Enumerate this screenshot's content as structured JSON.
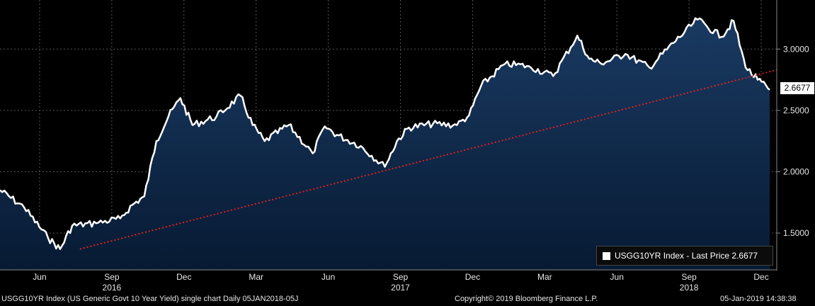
{
  "chart_data": {
    "type": "area",
    "title": "",
    "xlabel": "",
    "ylabel": "",
    "ylim": [
      1.2,
      3.4
    ],
    "y_ticks": [
      "1.5000",
      "2.0000",
      "2.5000",
      "3.0000"
    ],
    "y_tick_values": [
      1.5,
      2.0,
      2.5,
      3.0
    ],
    "x_month_ticks": [
      "Jun",
      "Sep",
      "Dec",
      "Mar",
      "Jun",
      "Sep",
      "Dec",
      "Mar",
      "Jun",
      "Sep",
      "Dec"
    ],
    "x_year_labels": [
      "2016",
      "2017",
      "2018"
    ],
    "series": [
      {
        "name": "USGG10YR Index - Last Price 2.6677",
        "x": [
          "2016-05",
          "2016-06",
          "2016-07",
          "2016-07",
          "2016-08",
          "2016-09",
          "2016-10",
          "2016-10",
          "2016-11",
          "2016-11",
          "2016-12",
          "2016-12",
          "2017-01",
          "2017-02",
          "2017-03",
          "2017-03",
          "2017-04",
          "2017-05",
          "2017-06",
          "2017-06",
          "2017-07",
          "2017-08",
          "2017-09",
          "2017-09",
          "2017-10",
          "2017-11",
          "2017-12",
          "2017-12",
          "2018-01",
          "2018-02",
          "2018-03",
          "2018-04",
          "2018-05",
          "2018-05",
          "2018-06",
          "2018-07",
          "2018-08",
          "2018-09",
          "2018-10",
          "2018-11",
          "2018-11",
          "2018-12",
          "2018-12",
          "2019-01"
        ],
        "values": [
          1.85,
          1.71,
          1.46,
          1.37,
          1.56,
          1.58,
          1.62,
          1.73,
          1.8,
          2.25,
          2.45,
          2.6,
          2.38,
          2.45,
          2.62,
          2.38,
          2.25,
          2.38,
          2.15,
          2.37,
          2.3,
          2.21,
          2.04,
          2.25,
          2.36,
          2.39,
          2.38,
          2.46,
          2.7,
          2.88,
          2.86,
          2.78,
          3.11,
          2.92,
          2.88,
          2.96,
          2.85,
          3.05,
          3.24,
          3.1,
          3.23,
          2.85,
          2.75,
          2.6677
        ]
      }
    ],
    "trendline": {
      "x": [
        "2016-07",
        "2019-01"
      ],
      "values": [
        1.37,
        2.83
      ],
      "color": "#e02020",
      "style": "dotted"
    },
    "last_price": "2.6677",
    "colors": {
      "line": "#ffffff",
      "area_top": "#1a3a62",
      "area_bottom": "#071a33",
      "background": "#000000",
      "grid": "#444444"
    },
    "grid": true,
    "legend_placement": "bottom-right"
  },
  "legend": {
    "label": "USGG10YR Index - Last Price 2.6677"
  },
  "footer": {
    "left": "USGG10YR Index (US Generic Govt 10 Year Yield) single chart  Daily 05JAN2018-05J",
    "center": "Copyright© 2019 Bloomberg Finance L.P.",
    "right": "05-Jan-2019 14:38:38"
  }
}
